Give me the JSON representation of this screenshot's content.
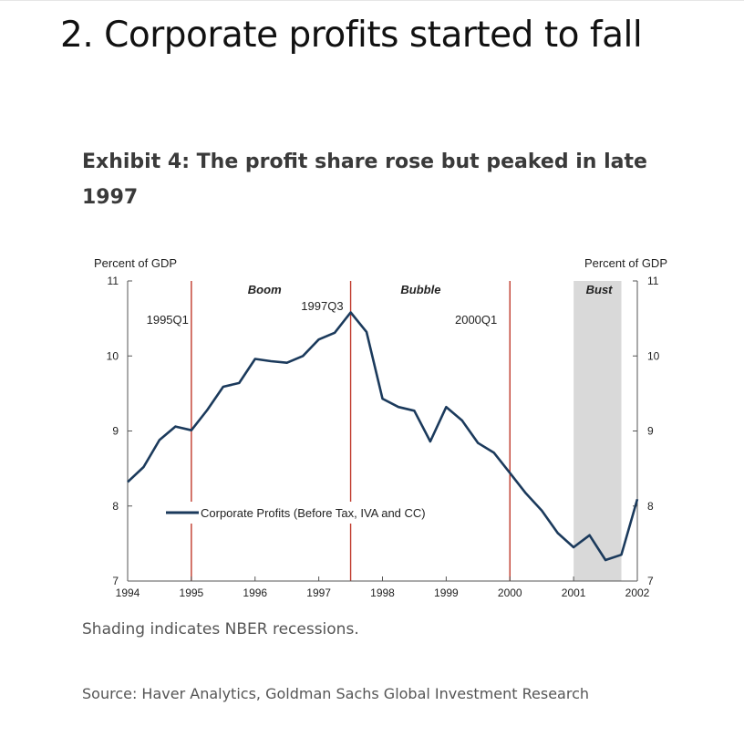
{
  "headline": "2. Corporate profits started to fall",
  "exhibit_title": "Exhibit 4: The profit share rose but peaked in late 1997",
  "note": "Shading indicates NBER recessions.",
  "source": "Source: Haver Analytics, Goldman Sachs Global Investment Research",
  "colors": {
    "line": "#1b3a5c",
    "marker": "#c0392b",
    "recession": "#d9d9d9",
    "axis": "#555555"
  },
  "chart_data": {
    "type": "line",
    "ylabel_left": "Percent of GDP",
    "ylabel_right": "Percent of GDP",
    "xlim": [
      1994,
      2002
    ],
    "ylim": [
      7,
      11
    ],
    "x_ticks": [
      "1994",
      "1995",
      "1996",
      "1997",
      "1998",
      "1999",
      "2000",
      "2001",
      "2002"
    ],
    "y_ticks": [
      "7",
      "8",
      "9",
      "10",
      "11"
    ],
    "legend": "Corporate Profits (Before Tax, IVA and CC)",
    "series": [
      {
        "name": "Corporate Profits (Before Tax, IVA and CC)",
        "x": [
          1994.0,
          1994.25,
          1994.5,
          1994.75,
          1995.0,
          1995.25,
          1995.5,
          1995.75,
          1996.0,
          1996.25,
          1996.5,
          1996.75,
          1997.0,
          1997.25,
          1997.5,
          1997.75,
          1998.0,
          1998.25,
          1998.5,
          1998.75,
          1999.0,
          1999.25,
          1999.5,
          1999.75,
          2000.0,
          2000.25,
          2000.5,
          2000.75,
          2001.0,
          2001.25,
          2001.5,
          2001.75,
          2002.0
        ],
        "values": [
          8.32,
          8.52,
          8.88,
          9.06,
          9.01,
          9.28,
          9.59,
          9.64,
          9.96,
          9.93,
          9.91,
          10.0,
          10.22,
          10.31,
          10.58,
          10.32,
          9.43,
          9.32,
          9.27,
          8.86,
          9.32,
          9.14,
          8.84,
          8.71,
          8.44,
          8.17,
          7.94,
          7.64,
          7.45,
          7.61,
          7.28,
          7.35,
          8.09
        ]
      }
    ],
    "recession_shading": [
      {
        "start": 2001.0,
        "end": 2001.75,
        "label": "Bust"
      }
    ],
    "vertical_markers": [
      {
        "x": 1995.0,
        "label": "1995Q1"
      },
      {
        "x": 1997.5,
        "label": "1997Q3"
      },
      {
        "x": 2000.0,
        "label": "2000Q1"
      }
    ],
    "period_labels": [
      {
        "x": 1996.15,
        "label": "Boom"
      },
      {
        "x": 1998.6,
        "label": "Bubble"
      },
      {
        "x": 2001.4,
        "label": "Bust"
      }
    ]
  }
}
